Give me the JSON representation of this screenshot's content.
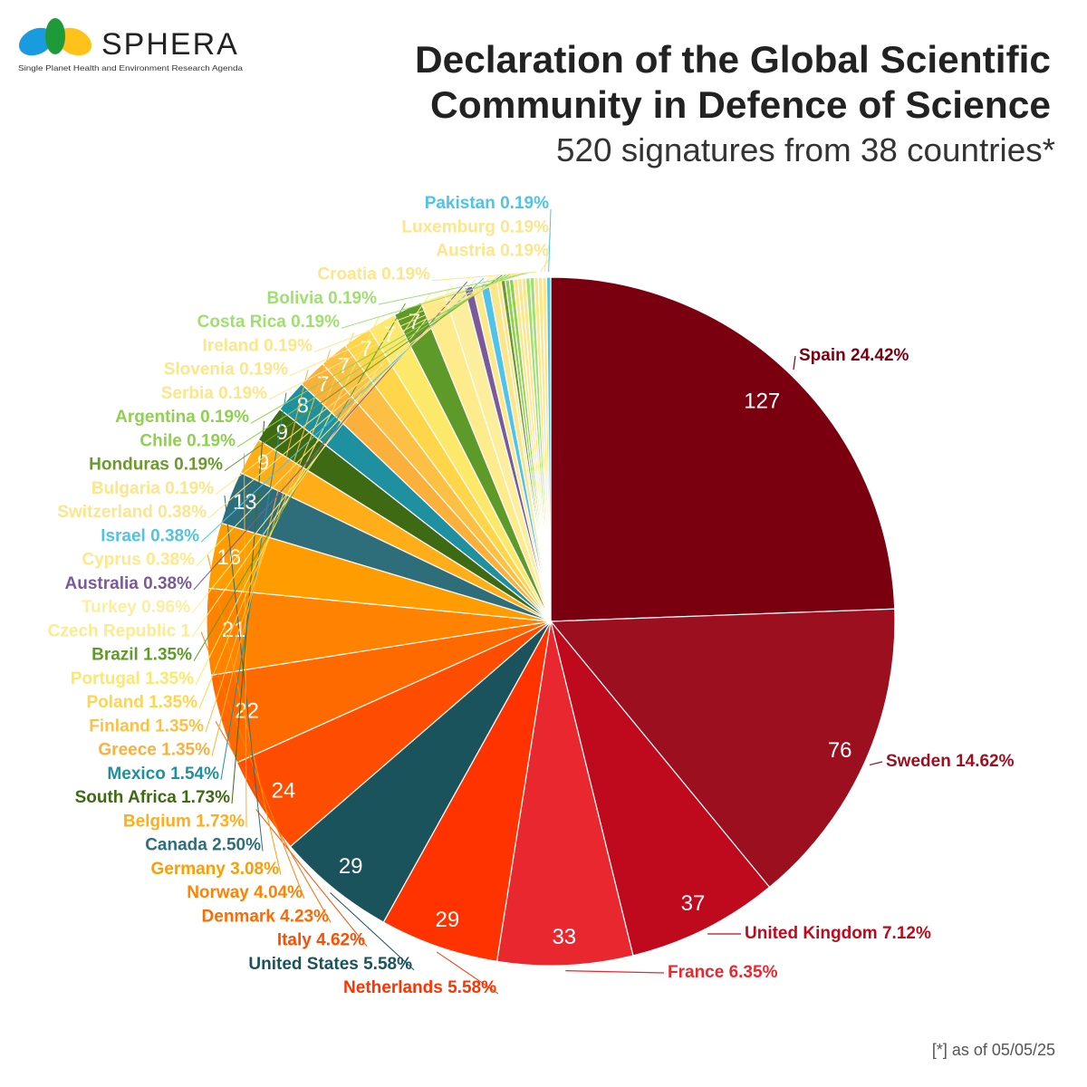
{
  "logo": {
    "name": "SPHERA",
    "tagline": "Single Planet Health and Environment Research Agenda"
  },
  "header": {
    "title_line1": "Declaration of the Global Scientific",
    "title_line2": "Community in Defence of Science",
    "subtitle": "520 signatures from 38 countries*"
  },
  "footnote": "[*] as of 05/05/25",
  "chart_data": {
    "type": "pie",
    "total": 520,
    "start": "12 o'clock, clockwise",
    "value_labels_shown_for_min": 7,
    "slices": [
      {
        "name": "Spain",
        "value": 127,
        "pct": "24.42%",
        "color": "#7a0010"
      },
      {
        "name": "Sweden",
        "value": 76,
        "pct": "14.62%",
        "color": "#9b0f1f"
      },
      {
        "name": "United Kingdom",
        "value": 37,
        "pct": "7.12%",
        "color": "#be0a1c"
      },
      {
        "name": "France",
        "value": 33,
        "pct": "6.35%",
        "color": "#e8282e"
      },
      {
        "name": "Netherlands",
        "value": 29,
        "pct": "5.58%",
        "color": "#ff3300"
      },
      {
        "name": "United States",
        "value": 29,
        "pct": "5.58%",
        "color": "#1a535c"
      },
      {
        "name": "Italy",
        "value": 24,
        "pct": "4.62%",
        "color": "#ff4d00"
      },
      {
        "name": "Denmark",
        "value": 22,
        "pct": "4.23%",
        "color": "#ff6a00"
      },
      {
        "name": "Norway",
        "value": 21,
        "pct": "4.04%",
        "color": "#ff8200"
      },
      {
        "name": "Germany",
        "value": 16,
        "pct": "3.08%",
        "color": "#ff9c00"
      },
      {
        "name": "Canada",
        "value": 13,
        "pct": "2.50%",
        "color": "#2e6e7a"
      },
      {
        "name": "Belgium",
        "value": 9,
        "pct": "1.73%",
        "color": "#ffae1a"
      },
      {
        "name": "South Africa",
        "value": 9,
        "pct": "1.73%",
        "color": "#3f6a14"
      },
      {
        "name": "Mexico",
        "value": 8,
        "pct": "1.54%",
        "color": "#1e90a0"
      },
      {
        "name": "Greece",
        "value": 7,
        "pct": "1.35%",
        "color": "#fbb03b"
      },
      {
        "name": "Finland",
        "value": 7,
        "pct": "1.35%",
        "color": "#fcc044"
      },
      {
        "name": "Poland",
        "value": 7,
        "pct": "1.35%",
        "color": "#ffd54a"
      },
      {
        "name": "Portugal",
        "value": 7,
        "pct": "1.35%",
        "color": "#fce96a"
      },
      {
        "name": "Brazil",
        "value": 7,
        "pct": "1.35%",
        "color": "#5e9a2a"
      },
      {
        "name": "Czech Republic",
        "value": 6,
        "pct": "1",
        "color": "#fdeb8c"
      },
      {
        "name": "Turkey",
        "value": 5,
        "pct": "0.96%",
        "color": "#fbef9e"
      },
      {
        "name": "Australia",
        "value": 2,
        "pct": "0.38%",
        "color": "#7b5a9a"
      },
      {
        "name": "Cyprus",
        "value": 2,
        "pct": "0.38%",
        "color": "#fde98a"
      },
      {
        "name": "Israel",
        "value": 2,
        "pct": "0.38%",
        "color": "#4fc3e8"
      },
      {
        "name": "Switzerland",
        "value": 2,
        "pct": "0.38%",
        "color": "#fde68a"
      },
      {
        "name": "Bulgaria",
        "value": 1,
        "pct": "0.19%",
        "color": "#fde68a"
      },
      {
        "name": "Honduras",
        "value": 1,
        "pct": "0.19%",
        "color": "#6a9a2a"
      },
      {
        "name": "Chile",
        "value": 1,
        "pct": "0.19%",
        "color": "#8fd14f"
      },
      {
        "name": "Argentina",
        "value": 1,
        "pct": "0.19%",
        "color": "#8fd14f"
      },
      {
        "name": "Serbia",
        "value": 1,
        "pct": "0.19%",
        "color": "#fde68a"
      },
      {
        "name": "Slovenia",
        "value": 1,
        "pct": "0.19%",
        "color": "#fde68a"
      },
      {
        "name": "Ireland",
        "value": 1,
        "pct": "0.19%",
        "color": "#fde68a"
      },
      {
        "name": "Costa Rica",
        "value": 1,
        "pct": "0.19%",
        "color": "#a0e070"
      },
      {
        "name": "Bolivia",
        "value": 1,
        "pct": "0.19%",
        "color": "#a0e070"
      },
      {
        "name": "Croatia",
        "value": 1,
        "pct": "0.19%",
        "color": "#fde68a"
      },
      {
        "name": "Austria",
        "value": 1,
        "pct": "0.19%",
        "color": "#fde68a"
      },
      {
        "name": "Luxemburg",
        "value": 1,
        "pct": "0.19%",
        "color": "#fde68a"
      },
      {
        "name": "Pakistan",
        "value": 1,
        "pct": "0.19%",
        "color": "#4fc3e8"
      }
    ]
  }
}
